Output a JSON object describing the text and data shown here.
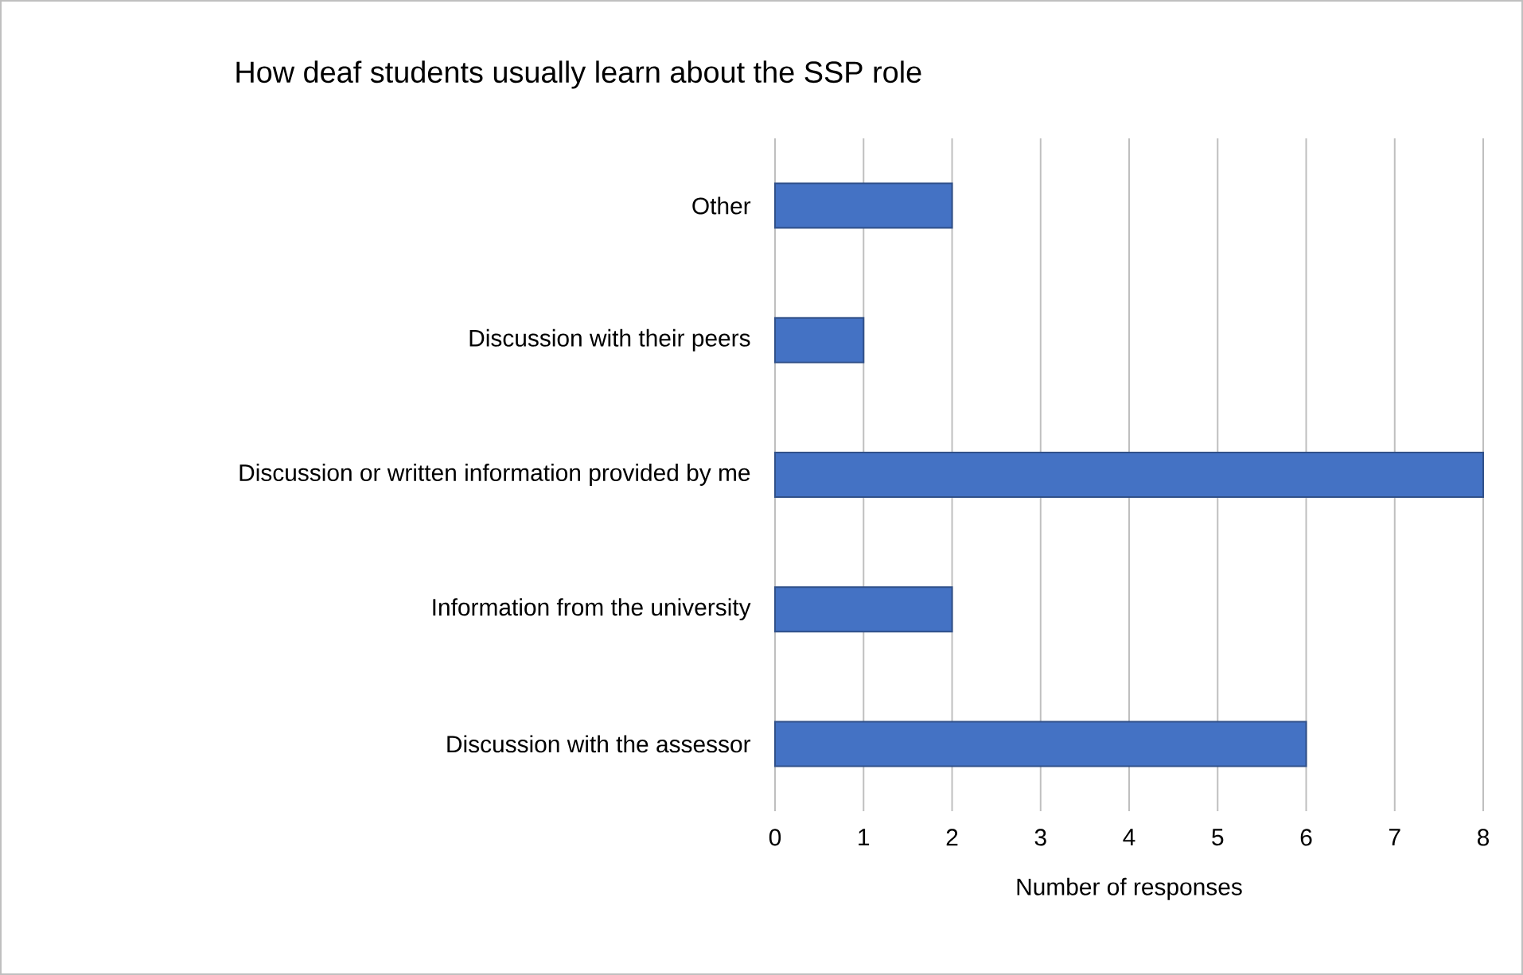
{
  "chart_data": {
    "type": "bar",
    "orientation": "horizontal",
    "title": "How deaf students usually learn about the SSP role",
    "xlabel": "Number of responses",
    "categories": [
      "Other",
      "Discussion with their peers",
      "Discussion or written information provided by me",
      "Information from the university",
      "Discussion with the assessor"
    ],
    "values": [
      2,
      1,
      8,
      2,
      6
    ],
    "color": "#4472c4",
    "xlim": [
      0,
      8
    ],
    "xticks": [
      0,
      1,
      2,
      3,
      4,
      5,
      6,
      7,
      8
    ],
    "grid": "x"
  }
}
